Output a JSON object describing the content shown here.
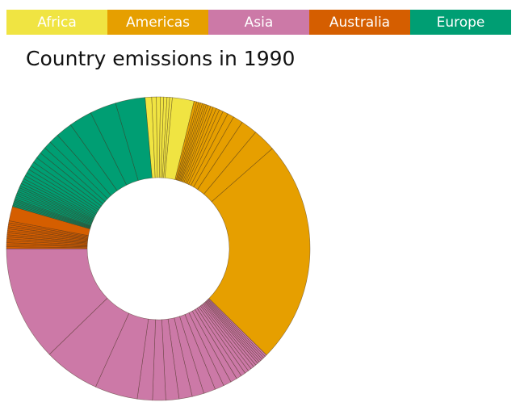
{
  "legend": {
    "items": [
      {
        "label": "Africa",
        "color": "#f0e442"
      },
      {
        "label": "Americas",
        "color": "#e69f00"
      },
      {
        "label": "Asia",
        "color": "#cc79a7"
      },
      {
        "label": "Australia",
        "color": "#d55e00"
      },
      {
        "label": "Europe",
        "color": "#009e73"
      }
    ]
  },
  "chart_data": {
    "type": "pie",
    "variant": "donut",
    "title": "Country emissions in 1990",
    "legend_position": "top",
    "start_angle_deg": -5,
    "groups": [
      {
        "name": "Africa",
        "color": "#f0e442",
        "slices": [
          1.0,
          0.7,
          0.6,
          0.5,
          0.5,
          0.4,
          0.4,
          3.3
        ]
      },
      {
        "name": "Americas",
        "color": "#e69f00",
        "slices": [
          0.4,
          0.3,
          0.3,
          0.3,
          0.3,
          0.3,
          0.3,
          0.4,
          0.4,
          0.5,
          0.5,
          0.6,
          0.8,
          1.0,
          1.5,
          2.5,
          3.5,
          34.0
        ]
      },
      {
        "name": "Asia",
        "color": "#cc79a7",
        "slices": [
          0.3,
          0.3,
          0.3,
          0.3,
          0.3,
          0.3,
          0.4,
          0.4,
          0.5,
          0.5,
          0.6,
          0.7,
          0.8,
          1.0,
          1.2,
          1.4,
          1.8,
          1.8,
          2.0,
          2.0,
          2.0,
          2.3,
          6.5,
          8.5,
          17.5
        ]
      },
      {
        "name": "Australia",
        "color": "#d55e00",
        "slices": [
          0.3,
          0.3,
          0.3,
          0.3,
          0.3,
          0.3,
          0.3,
          0.3,
          0.3,
          0.3,
          0.3,
          0.3,
          0.3,
          0.3,
          2.2
        ]
      },
      {
        "name": "Europe",
        "color": "#009e73",
        "slices": [
          0.2,
          0.2,
          0.2,
          0.2,
          0.2,
          0.2,
          0.3,
          0.3,
          0.3,
          0.3,
          0.3,
          0.3,
          0.3,
          0.4,
          0.4,
          0.4,
          0.5,
          0.5,
          0.6,
          0.6,
          0.7,
          0.8,
          0.9,
          1.0,
          1.2,
          1.5,
          2.5,
          3.5,
          4.0,
          4.5
        ]
      }
    ]
  }
}
